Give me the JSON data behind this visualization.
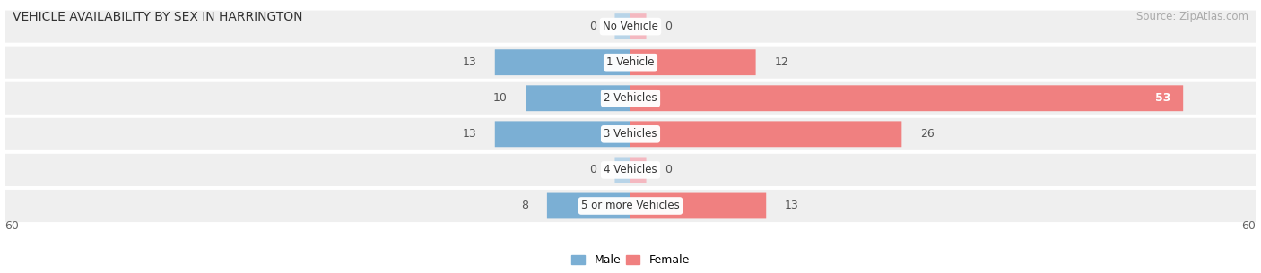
{
  "title": "VEHICLE AVAILABILITY BY SEX IN HARRINGTON",
  "source": "Source: ZipAtlas.com",
  "categories": [
    "No Vehicle",
    "1 Vehicle",
    "2 Vehicles",
    "3 Vehicles",
    "4 Vehicles",
    "5 or more Vehicles"
  ],
  "male_values": [
    0,
    13,
    10,
    13,
    0,
    8
  ],
  "female_values": [
    0,
    12,
    53,
    26,
    0,
    13
  ],
  "male_color": "#7bafd4",
  "female_color": "#f08080",
  "male_color_light": "#b8d4e8",
  "female_color_light": "#f4b8c0",
  "row_bg_color": "#efefef",
  "max_val": 60,
  "stub": 1.5,
  "title_fontsize": 10,
  "source_fontsize": 8.5,
  "label_fontsize": 9,
  "legend_fontsize": 9,
  "category_fontsize": 8.5
}
